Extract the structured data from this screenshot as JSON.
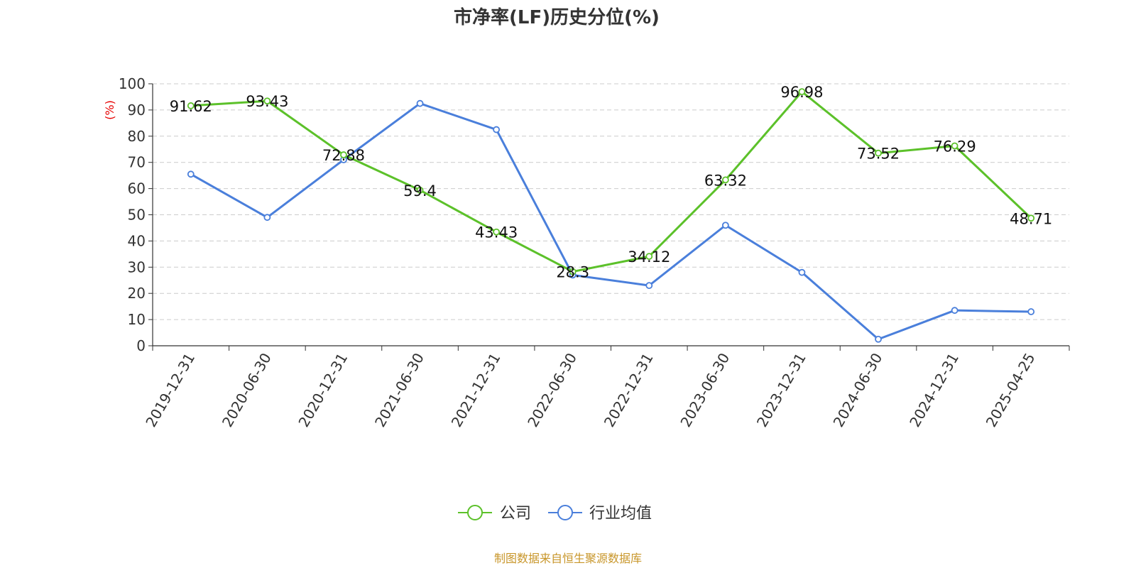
{
  "chart_data": {
    "type": "line",
    "title": "市净率(LF)历史分位(%)",
    "ylabel": "(%)",
    "ylim": [
      0,
      100
    ],
    "yticks": [
      0,
      10,
      20,
      30,
      40,
      50,
      60,
      70,
      80,
      90,
      100
    ],
    "grid": true,
    "legend_position": "bottom-center",
    "categories": [
      "2019-12-31",
      "2020-06-30",
      "2020-12-31",
      "2021-06-30",
      "2021-12-31",
      "2022-06-30",
      "2022-12-31",
      "2023-06-30",
      "2023-12-31",
      "2024-06-30",
      "2024-12-31",
      "2025-04-25"
    ],
    "series": [
      {
        "name": "公司",
        "color": "#5cc12a",
        "values": [
          91.62,
          93.43,
          72.88,
          59.4,
          43.43,
          28.3,
          34.12,
          63.32,
          96.98,
          73.52,
          76.29,
          48.71
        ],
        "labels": [
          "91.62",
          "93.43",
          "72.88",
          "59.4",
          "43.43",
          "28.3",
          "34.12",
          "63.32",
          "96.98",
          "73.52",
          "76.29",
          "48.71"
        ]
      },
      {
        "name": "行业均值",
        "color": "#4a7fdb",
        "values": [
          65.5,
          49,
          71,
          92.5,
          82.5,
          27,
          23,
          46,
          28,
          2.5,
          13.5,
          13
        ]
      }
    ],
    "source": "制图数据来自恒生聚源数据库"
  }
}
